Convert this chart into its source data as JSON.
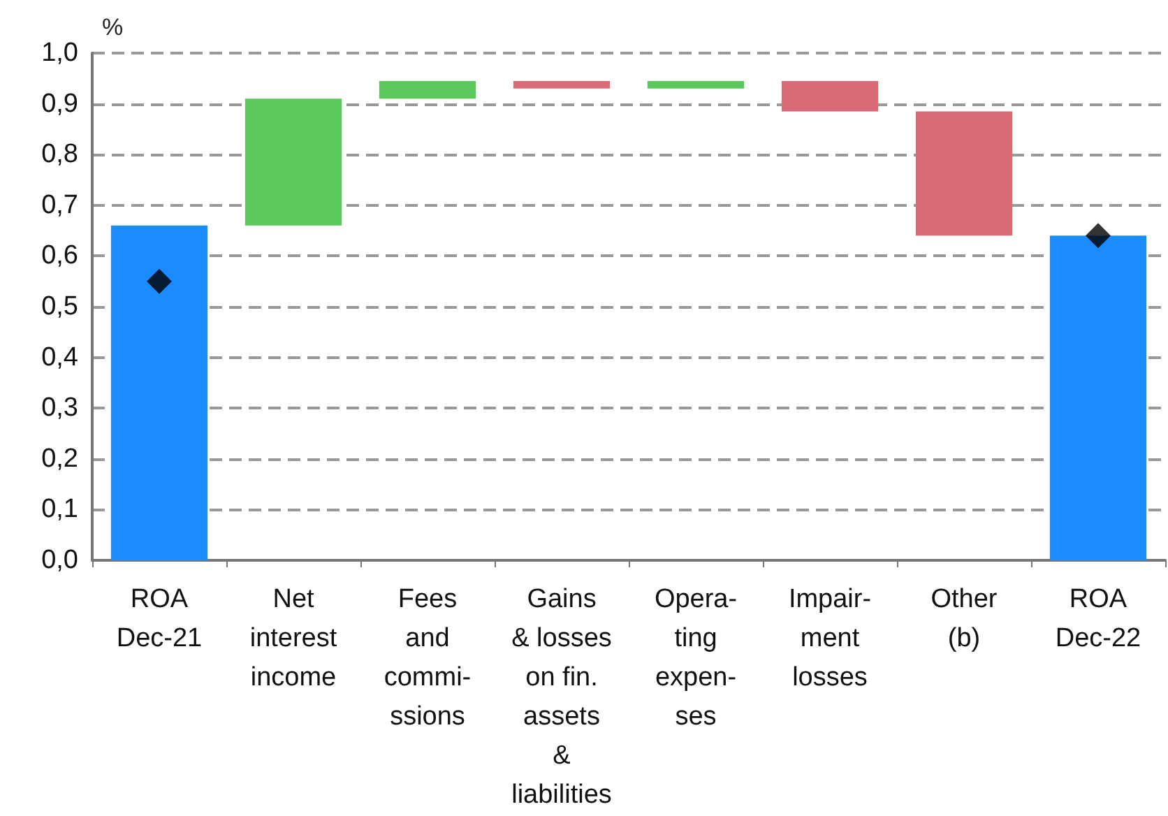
{
  "chart_data": {
    "type": "bar",
    "ylabel": "%",
    "categories": [
      "ROA\nDec-21",
      "Net\ninterest\nincome",
      "Fees\nand\ncommi-\nssions",
      "Gains\n& losses\non fin.\nassets\n&\nliabilities",
      "Opera-\nting\nexpen-\nses",
      "Impair-\nment\nlosses",
      "Other\n(b)",
      "ROA\nDec-22"
    ],
    "series": [
      {
        "values": [
          0.66,
          0.25,
          0.035,
          -0.015,
          0.015,
          -0.06,
          -0.245,
          0.64
        ],
        "base": [
          0,
          0.66,
          0.91,
          0.945,
          0.93,
          0.945,
          0.885,
          0
        ],
        "colors": [
          "#1a8cff",
          "#5ac85a",
          "#5ac85a",
          "#d96b77",
          "#5ac85a",
          "#d96b77",
          "#d96b77",
          "#1a8cff"
        ]
      },
      {
        "type": "scatter",
        "color": "#000000",
        "marker": "diamond",
        "values": [
          0.55,
          null,
          null,
          null,
          null,
          null,
          null,
          0.64
        ]
      }
    ],
    "ylim": [
      0,
      1
    ],
    "yticks": [
      {
        "value": 0,
        "label": "0,0"
      },
      {
        "value": 0.1,
        "label": "0,1"
      },
      {
        "value": 0.2,
        "label": "0,2"
      },
      {
        "value": 0.3,
        "label": "0,3"
      },
      {
        "value": 0.4,
        "label": "0,4"
      },
      {
        "value": 0.5,
        "label": "0,5"
      },
      {
        "value": 0.6,
        "label": "0,6"
      },
      {
        "value": 0.7,
        "label": "0,7"
      },
      {
        "value": 0.8,
        "label": "0,8"
      },
      {
        "value": 0.9,
        "label": "0,9"
      },
      {
        "value": 1,
        "label": "1,0"
      }
    ],
    "grid": "y"
  }
}
